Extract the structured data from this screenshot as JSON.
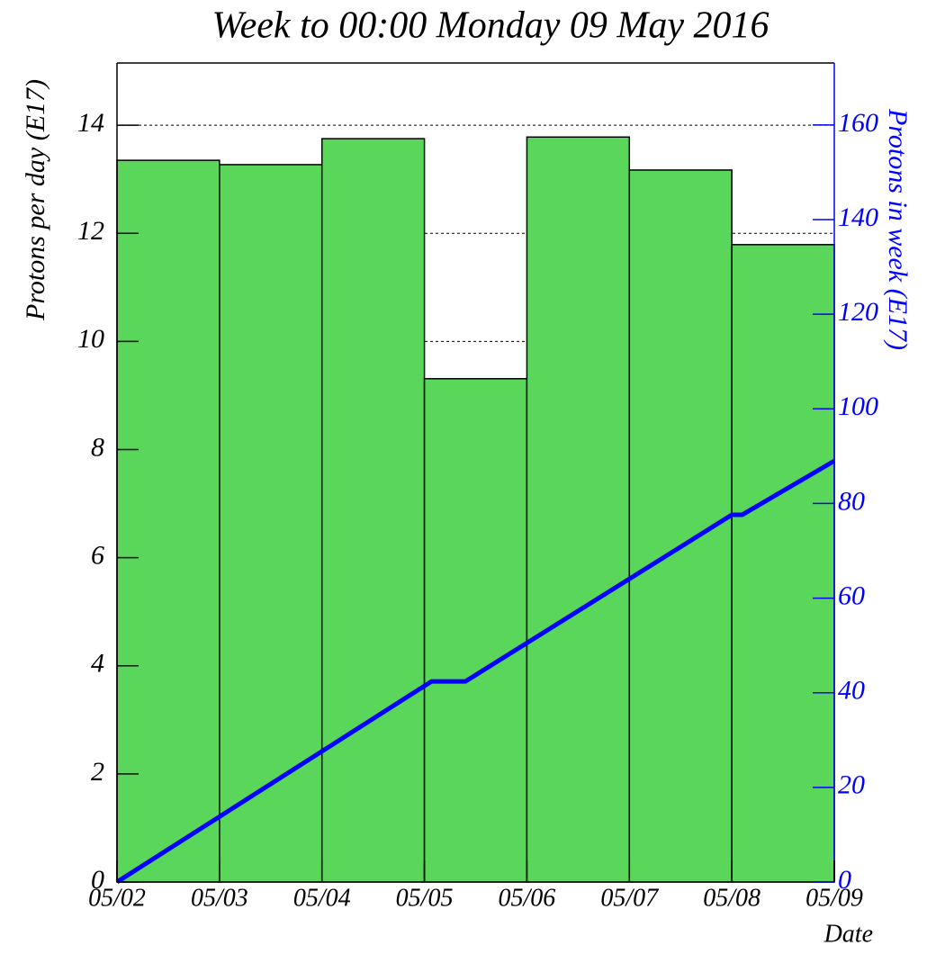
{
  "chart_data": {
    "type": "histogram",
    "title": "Week to 00:00 Monday 09 May 2016",
    "ylabel": "Protons per day (E17)",
    "y2label": "Protons in week (E17)",
    "xlabel": "Date",
    "bins": [
      0,
      1,
      2,
      3,
      4,
      5,
      6,
      7
    ],
    "values": [
      13.35,
      13.27,
      13.75,
      9.31,
      13.78,
      13.17,
      11.79
    ],
    "color": "#5ad65a",
    "xlim": [
      0,
      7
    ],
    "xticks": [
      {
        "value": 0,
        "label": "05/02"
      },
      {
        "value": 1,
        "label": "05/03"
      },
      {
        "value": 2,
        "label": "05/04"
      },
      {
        "value": 3,
        "label": "05/05"
      },
      {
        "value": 4,
        "label": "05/06"
      },
      {
        "value": 5,
        "label": "05/07"
      },
      {
        "value": 6,
        "label": "05/08"
      },
      {
        "value": 7,
        "label": "05/09"
      }
    ],
    "ylim": [
      0,
      15.15
    ],
    "yticks": [
      0,
      2,
      4,
      6,
      8,
      10,
      12,
      14
    ],
    "y2lim": [
      0,
      173.1
    ],
    "y2ticks": [
      0,
      20,
      40,
      60,
      80,
      100,
      120,
      140,
      160
    ],
    "grid": true,
    "line": {
      "type": "line",
      "axis": "y2",
      "color": "#0000ff",
      "x": [
        0,
        3.07,
        3.4,
        6.0,
        6.1,
        7
      ],
      "values": [
        0,
        42.4,
        42.4,
        77.6,
        77.6,
        89.0
      ]
    }
  }
}
